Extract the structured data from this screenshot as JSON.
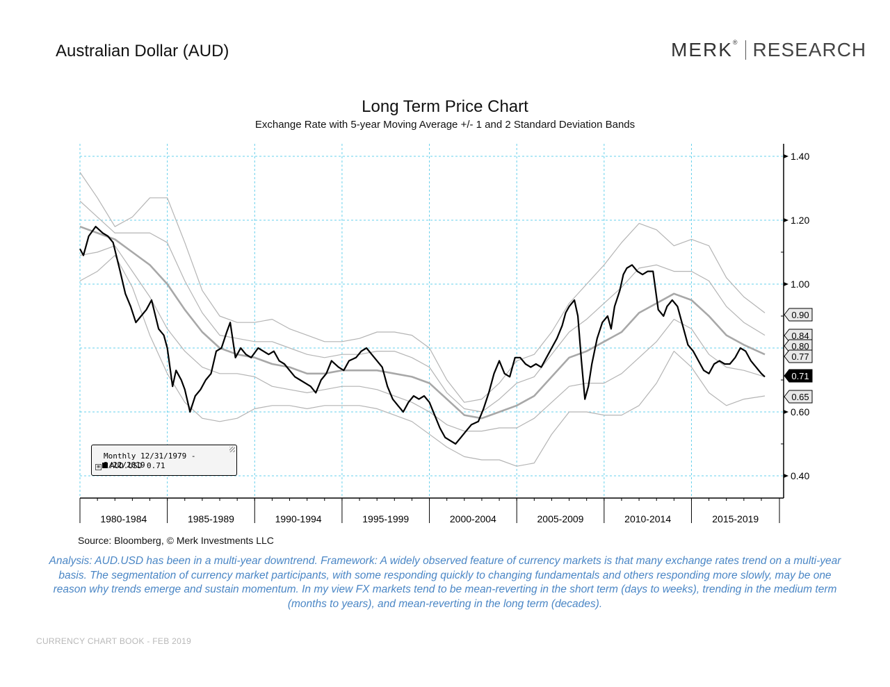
{
  "header": {
    "page_title": "Australian Dollar (AUD)",
    "logo_left": "MERK",
    "logo_reg": "®",
    "logo_right": "RESEARCH"
  },
  "chart_title": "Long Term Price Chart",
  "chart_subtitle": "Exchange Rate with 5-year Moving Average +/- 1 and 2 Standard Deviation Bands",
  "legend": {
    "period": "Monthly 12/31/1979 - 2/22/2019",
    "expand": "⊞",
    "series": "AUD.USD 0.71"
  },
  "source": "Source: Bloomberg, © Merk Investments LLC",
  "analysis": "Analysis: AUD.USD has been in a multi-year downtrend. Framework: A widely observed feature of currency markets is that many exchange rates trend on a multi-year basis. The segmentation of currency market participants, with some responding quickly to changing fundamentals and others responding more slowly, may be one reason why trends emerge and sustain momentum. In my view FX markets tend to be mean-reverting in the short term (days to weeks), trending in the medium term (months to years), and mean-reverting in the long term (decades).",
  "footer": "CURRENCY CHART BOOK - FEB 2019",
  "chart_data": {
    "type": "line",
    "x_start": 1980.0,
    "x_end": 2019.2,
    "ylim": [
      0.3,
      1.42
    ],
    "y_ticks": [
      "1.40",
      "1.20",
      "1.00",
      "0.60",
      "0.40"
    ],
    "y_tick_values": [
      1.4,
      1.2,
      1.0,
      0.6,
      0.4
    ],
    "x_groups": [
      "1980-1984",
      "1985-1989",
      "1990-1994",
      "1995-1999",
      "2000-2004",
      "2005-2009",
      "2010-2014",
      "2015-2019"
    ],
    "grid": true,
    "legend_position": "bottom-left",
    "value_labels": [
      {
        "label": "0.90",
        "value": 0.9,
        "highlight": false
      },
      {
        "label": "0.84",
        "value": 0.84,
        "highlight": false
      },
      {
        "label": "0.80",
        "value": 0.8,
        "highlight": false
      },
      {
        "label": "0.77",
        "value": 0.77,
        "highlight": false
      },
      {
        "label": "0.71",
        "value": 0.71,
        "highlight": true
      },
      {
        "label": "0.65",
        "value": 0.65,
        "highlight": false
      }
    ],
    "colors": {
      "price": "#000000",
      "moving_average": "#a8a8a8",
      "bands": "#b4b4b4",
      "grid": "#66d0ec"
    },
    "series": [
      {
        "role": "price",
        "x": [
          1980.0,
          1980.2,
          1980.5,
          1980.9,
          1981.3,
          1981.6,
          1981.9,
          1982.3,
          1982.6,
          1982.9,
          1983.2,
          1983.5,
          1983.8,
          1984.1,
          1984.5,
          1984.8,
          1985.0,
          1985.3,
          1985.5,
          1985.8,
          1986.0,
          1986.3,
          1986.6,
          1986.9,
          1987.2,
          1987.5,
          1987.8,
          1988.1,
          1988.4,
          1988.6,
          1988.9,
          1989.2,
          1989.5,
          1989.8,
          1990.2,
          1990.5,
          1990.8,
          1991.1,
          1991.4,
          1991.7,
          1992.0,
          1992.3,
          1992.6,
          1992.9,
          1993.2,
          1993.5,
          1993.8,
          1994.1,
          1994.4,
          1994.8,
          1995.1,
          1995.4,
          1995.8,
          1996.1,
          1996.4,
          1996.7,
          1997.0,
          1997.3,
          1997.6,
          1997.9,
          1998.2,
          1998.5,
          1998.8,
          1999.1,
          1999.4,
          1999.7,
          2000.0,
          2000.3,
          2000.6,
          2000.9,
          2001.2,
          2001.5,
          2001.8,
          2002.1,
          2002.4,
          2002.8,
          2003.1,
          2003.4,
          2003.7,
          2004.0,
          2004.3,
          2004.6,
          2004.9,
          2005.2,
          2005.5,
          2005.8,
          2006.1,
          2006.4,
          2006.7,
          2007.0,
          2007.3,
          2007.6,
          2007.8,
          2008.0,
          2008.3,
          2008.5,
          2008.7,
          2008.9,
          2009.1,
          2009.3,
          2009.6,
          2009.9,
          2010.2,
          2010.4,
          2010.6,
          2010.9,
          2011.1,
          2011.3,
          2011.6,
          2011.9,
          2012.2,
          2012.5,
          2012.8,
          2013.1,
          2013.4,
          2013.6,
          2013.9,
          2014.2,
          2014.5,
          2014.8,
          2015.1,
          2015.4,
          2015.7,
          2016.0,
          2016.3,
          2016.6,
          2016.9,
          2017.2,
          2017.5,
          2017.8,
          2018.1,
          2018.4,
          2018.7,
          2019.0,
          2019.2
        ],
        "y": [
          1.11,
          1.09,
          1.15,
          1.18,
          1.16,
          1.15,
          1.13,
          1.04,
          0.97,
          0.93,
          0.88,
          0.9,
          0.92,
          0.95,
          0.86,
          0.84,
          0.8,
          0.68,
          0.73,
          0.7,
          0.67,
          0.6,
          0.65,
          0.67,
          0.7,
          0.72,
          0.79,
          0.8,
          0.85,
          0.88,
          0.77,
          0.8,
          0.78,
          0.77,
          0.8,
          0.79,
          0.78,
          0.79,
          0.76,
          0.75,
          0.73,
          0.71,
          0.7,
          0.69,
          0.68,
          0.66,
          0.7,
          0.72,
          0.76,
          0.74,
          0.73,
          0.76,
          0.77,
          0.79,
          0.8,
          0.78,
          0.76,
          0.74,
          0.68,
          0.64,
          0.62,
          0.6,
          0.63,
          0.65,
          0.64,
          0.65,
          0.63,
          0.59,
          0.55,
          0.52,
          0.51,
          0.5,
          0.52,
          0.54,
          0.56,
          0.57,
          0.61,
          0.66,
          0.72,
          0.76,
          0.72,
          0.71,
          0.77,
          0.77,
          0.75,
          0.74,
          0.75,
          0.74,
          0.77,
          0.8,
          0.83,
          0.87,
          0.91,
          0.93,
          0.95,
          0.9,
          0.76,
          0.64,
          0.68,
          0.75,
          0.83,
          0.88,
          0.9,
          0.86,
          0.93,
          0.98,
          1.03,
          1.05,
          1.06,
          1.04,
          1.03,
          1.04,
          1.04,
          0.92,
          0.9,
          0.93,
          0.95,
          0.93,
          0.87,
          0.81,
          0.79,
          0.76,
          0.73,
          0.72,
          0.75,
          0.76,
          0.75,
          0.75,
          0.77,
          0.8,
          0.79,
          0.76,
          0.74,
          0.72,
          0.71
        ]
      },
      {
        "role": "moving_average",
        "x": [
          1980.0,
          1981.0,
          1982.0,
          1983.0,
          1984.0,
          1985.0,
          1986.0,
          1987.0,
          1988.0,
          1989.0,
          1990.0,
          1991.0,
          1992.0,
          1993.0,
          1994.0,
          1995.0,
          1996.0,
          1997.0,
          1998.0,
          1999.0,
          2000.0,
          2001.0,
          2002.0,
          2003.0,
          2004.0,
          2005.0,
          2006.0,
          2007.0,
          2008.0,
          2009.0,
          2010.0,
          2011.0,
          2012.0,
          2013.0,
          2014.0,
          2015.0,
          2016.0,
          2017.0,
          2018.0,
          2019.2
        ],
        "y": [
          1.18,
          1.16,
          1.14,
          1.1,
          1.06,
          1.0,
          0.92,
          0.85,
          0.8,
          0.78,
          0.77,
          0.75,
          0.74,
          0.72,
          0.72,
          0.73,
          0.73,
          0.73,
          0.72,
          0.71,
          0.69,
          0.64,
          0.59,
          0.58,
          0.6,
          0.62,
          0.65,
          0.71,
          0.77,
          0.79,
          0.82,
          0.85,
          0.91,
          0.94,
          0.97,
          0.95,
          0.9,
          0.84,
          0.81,
          0.78
        ]
      },
      {
        "role": "band_upper_2sd",
        "x": [
          1980.0,
          1981.0,
          1982.0,
          1983.0,
          1984.0,
          1985.0,
          1986.0,
          1987.0,
          1988.0,
          1989.0,
          1990.0,
          1991.0,
          1992.0,
          1993.0,
          1994.0,
          1995.0,
          1996.0,
          1997.0,
          1998.0,
          1999.0,
          2000.0,
          2001.0,
          2002.0,
          2003.0,
          2004.0,
          2005.0,
          2006.0,
          2007.0,
          2008.0,
          2009.0,
          2010.0,
          2011.0,
          2012.0,
          2013.0,
          2014.0,
          2015.0,
          2016.0,
          2017.0,
          2018.0,
          2019.2
        ],
        "y": [
          1.35,
          1.27,
          1.18,
          1.21,
          1.27,
          1.27,
          1.13,
          0.98,
          0.9,
          0.88,
          0.88,
          0.89,
          0.86,
          0.84,
          0.82,
          0.82,
          0.83,
          0.85,
          0.85,
          0.84,
          0.8,
          0.7,
          0.63,
          0.64,
          0.69,
          0.76,
          0.78,
          0.85,
          0.94,
          1.0,
          1.06,
          1.13,
          1.19,
          1.17,
          1.12,
          1.14,
          1.12,
          1.02,
          0.96,
          0.91
        ]
      },
      {
        "role": "band_upper_1sd",
        "x": [
          1980.0,
          1981.0,
          1982.0,
          1983.0,
          1984.0,
          1985.0,
          1986.0,
          1987.0,
          1988.0,
          1989.0,
          1990.0,
          1991.0,
          1992.0,
          1993.0,
          1994.0,
          1995.0,
          1996.0,
          1997.0,
          1998.0,
          1999.0,
          2000.0,
          2001.0,
          2002.0,
          2003.0,
          2004.0,
          2005.0,
          2006.0,
          2007.0,
          2008.0,
          2009.0,
          2010.0,
          2011.0,
          2012.0,
          2013.0,
          2014.0,
          2015.0,
          2016.0,
          2017.0,
          2018.0,
          2019.2
        ],
        "y": [
          1.26,
          1.21,
          1.16,
          1.16,
          1.16,
          1.13,
          1.01,
          0.91,
          0.84,
          0.83,
          0.82,
          0.82,
          0.8,
          0.78,
          0.77,
          0.78,
          0.78,
          0.79,
          0.79,
          0.77,
          0.74,
          0.66,
          0.61,
          0.6,
          0.64,
          0.69,
          0.71,
          0.78,
          0.85,
          0.89,
          0.94,
          0.99,
          1.05,
          1.06,
          1.04,
          1.04,
          1.01,
          0.93,
          0.88,
          0.84
        ]
      },
      {
        "role": "band_lower_1sd",
        "x": [
          1980.0,
          1981.0,
          1982.0,
          1983.0,
          1984.0,
          1985.0,
          1986.0,
          1987.0,
          1988.0,
          1989.0,
          1990.0,
          1991.0,
          1992.0,
          1993.0,
          1994.0,
          1995.0,
          1996.0,
          1997.0,
          1998.0,
          1999.0,
          2000.0,
          2001.0,
          2002.0,
          2003.0,
          2004.0,
          2005.0,
          2006.0,
          2007.0,
          2008.0,
          2009.0,
          2010.0,
          2011.0,
          2012.0,
          2013.0,
          2014.0,
          2015.0,
          2016.0,
          2017.0,
          2018.0,
          2019.2
        ],
        "y": [
          1.09,
          1.1,
          1.12,
          1.04,
          0.96,
          0.86,
          0.79,
          0.74,
          0.72,
          0.72,
          0.71,
          0.68,
          0.67,
          0.66,
          0.67,
          0.68,
          0.68,
          0.67,
          0.65,
          0.63,
          0.6,
          0.56,
          0.54,
          0.54,
          0.55,
          0.55,
          0.58,
          0.63,
          0.68,
          0.69,
          0.69,
          0.72,
          0.77,
          0.82,
          0.89,
          0.86,
          0.78,
          0.74,
          0.73,
          0.71
        ]
      },
      {
        "role": "band_lower_2sd",
        "x": [
          1980.0,
          1981.0,
          1982.0,
          1983.0,
          1984.0,
          1985.0,
          1986.0,
          1987.0,
          1988.0,
          1989.0,
          1990.0,
          1991.0,
          1992.0,
          1993.0,
          1994.0,
          1995.0,
          1996.0,
          1997.0,
          1998.0,
          1999.0,
          2000.0,
          2001.0,
          2002.0,
          2003.0,
          2004.0,
          2005.0,
          2006.0,
          2007.0,
          2008.0,
          2009.0,
          2010.0,
          2011.0,
          2012.0,
          2013.0,
          2014.0,
          2015.0,
          2016.0,
          2017.0,
          2018.0,
          2019.2
        ],
        "y": [
          1.01,
          1.04,
          1.09,
          0.99,
          0.84,
          0.72,
          0.63,
          0.58,
          0.57,
          0.58,
          0.61,
          0.62,
          0.62,
          0.61,
          0.62,
          0.62,
          0.62,
          0.61,
          0.59,
          0.57,
          0.53,
          0.49,
          0.46,
          0.45,
          0.45,
          0.43,
          0.44,
          0.53,
          0.6,
          0.6,
          0.59,
          0.59,
          0.62,
          0.69,
          0.79,
          0.74,
          0.66,
          0.62,
          0.64,
          0.65
        ]
      }
    ]
  }
}
